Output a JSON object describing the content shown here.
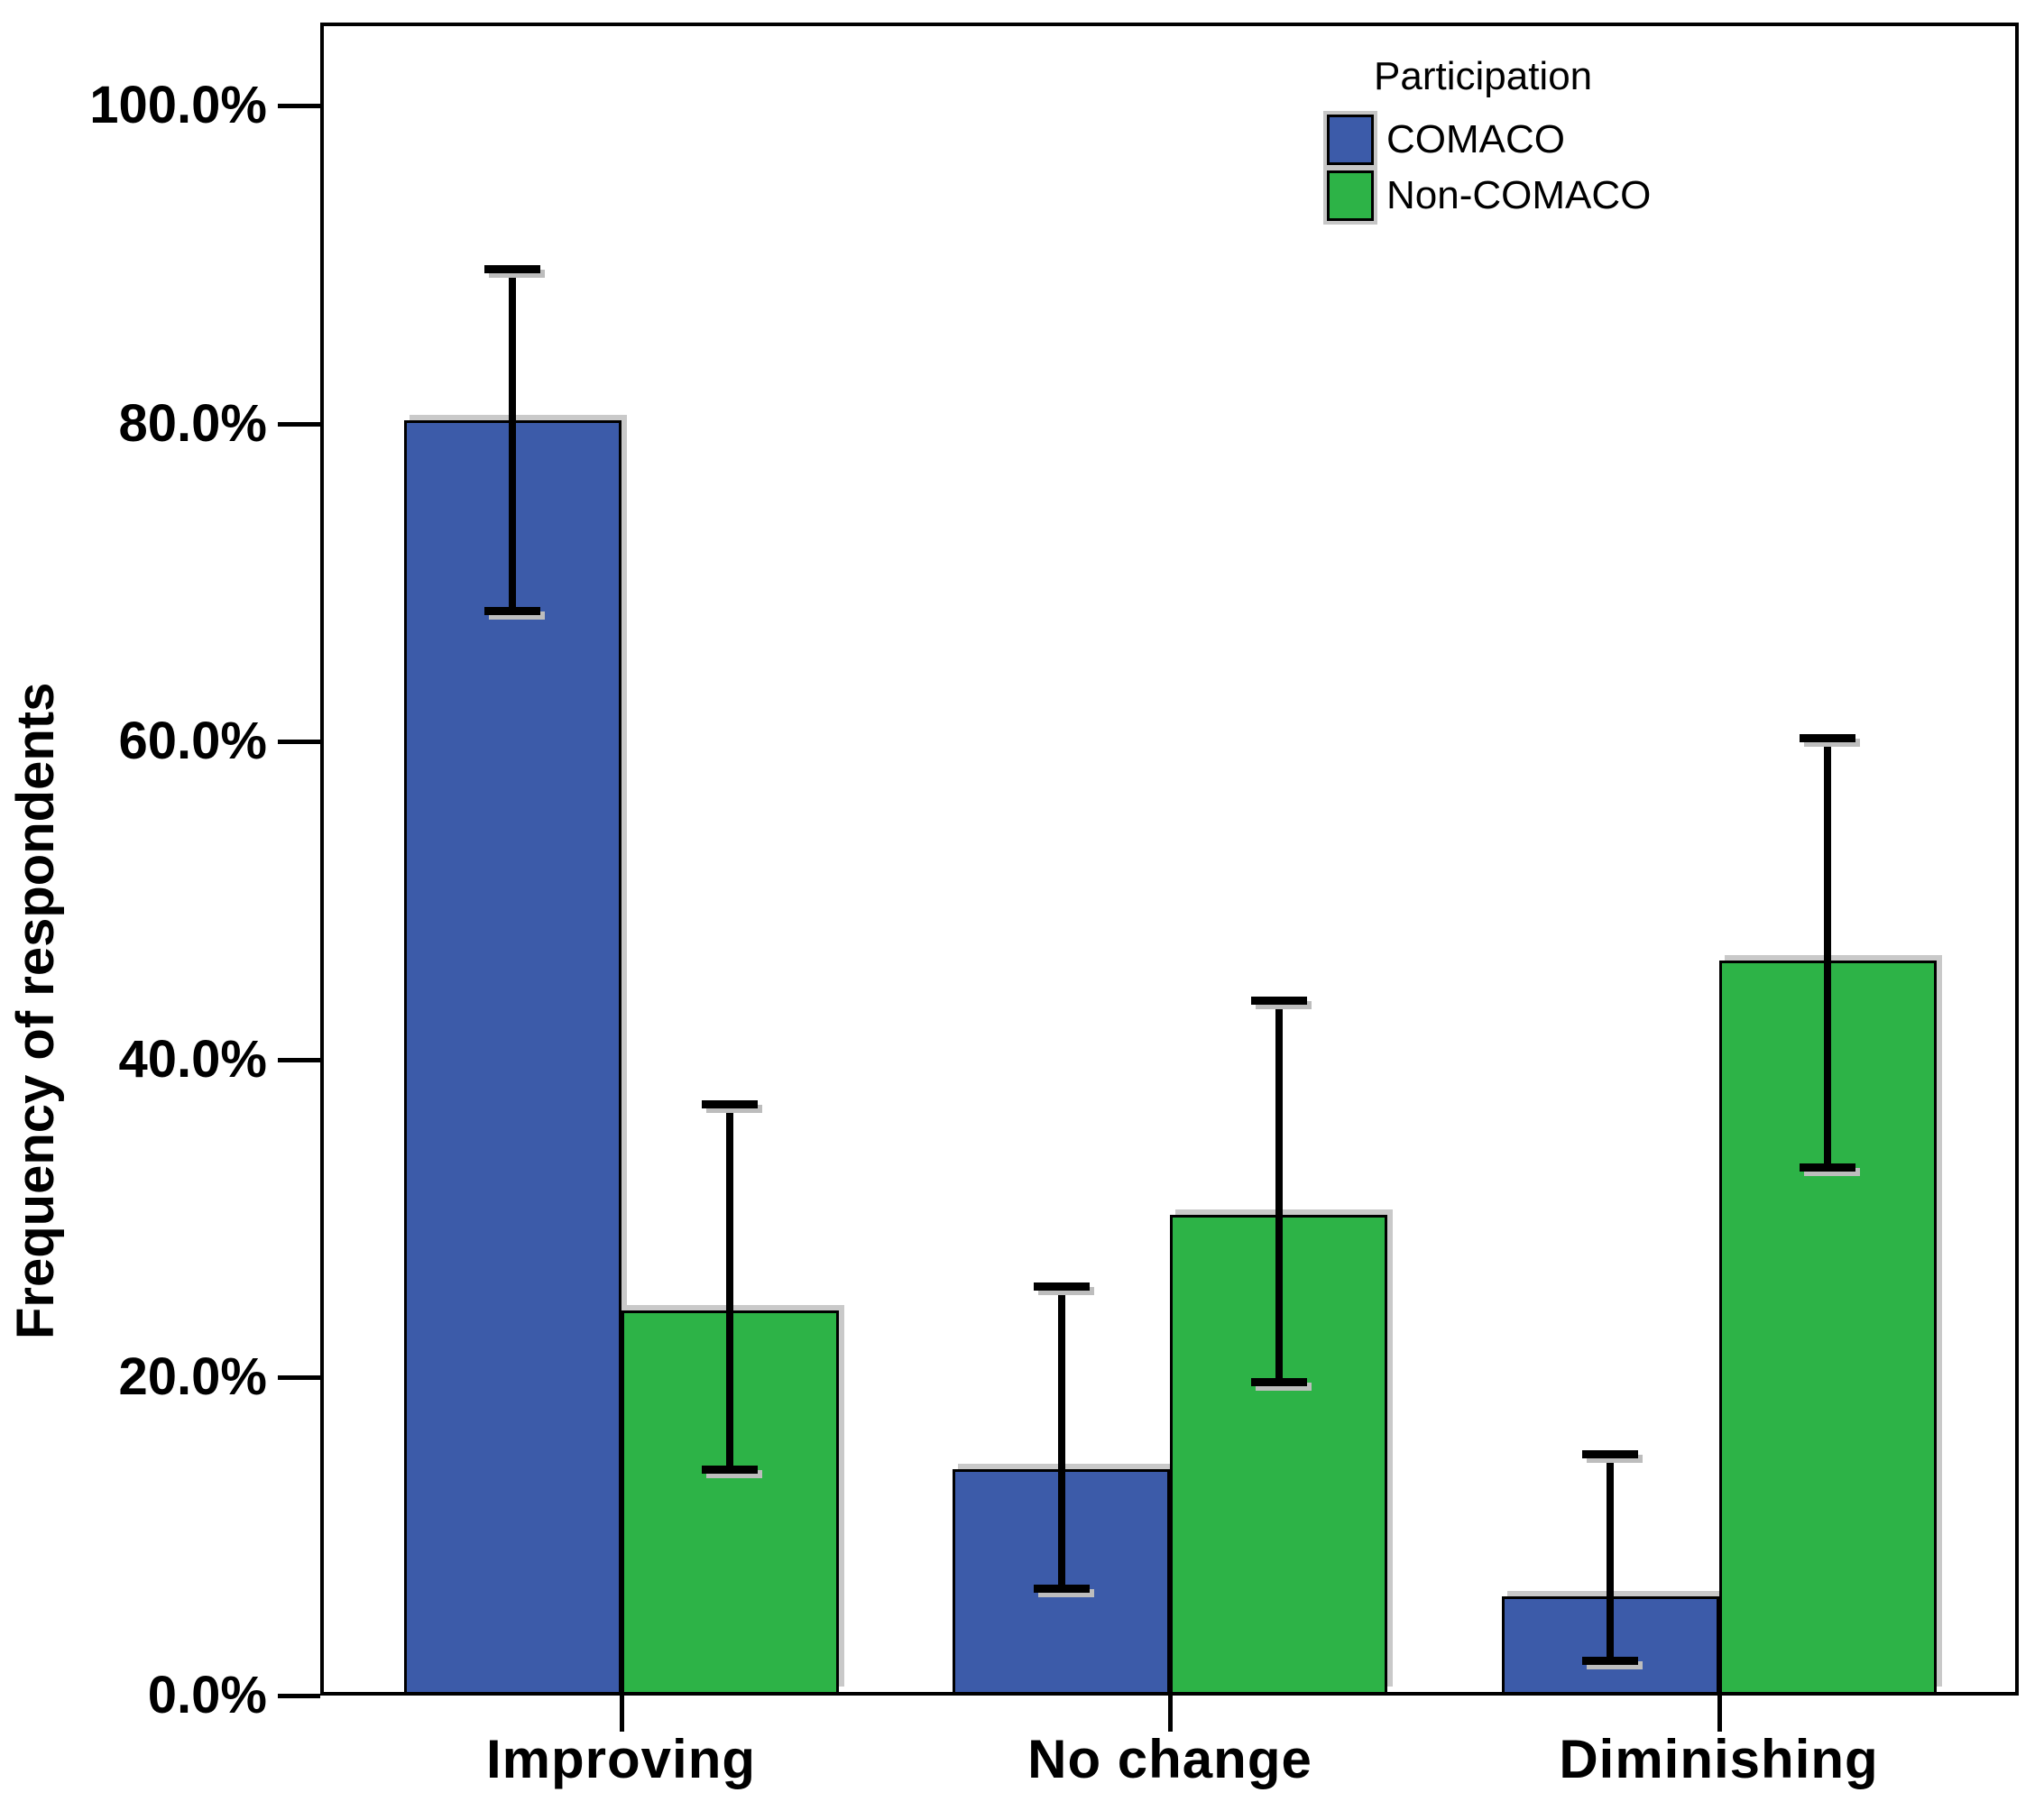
{
  "chart_data": {
    "type": "bar",
    "title": "",
    "ylabel": "Frequency of respondents",
    "xlabel": "",
    "categories": [
      "Improving",
      "No change",
      "Diminishing"
    ],
    "series": [
      {
        "name": "COMACO",
        "color": "#3C5BA9",
        "values": [
          80,
          14,
          6
        ],
        "error_low": [
          68,
          6.5,
          2
        ],
        "error_high": [
          89.5,
          25.5,
          15
        ]
      },
      {
        "name": "Non-COMACO",
        "color": "#2DB347",
        "values": [
          24,
          30,
          46
        ],
        "error_low": [
          14,
          19.5,
          33
        ],
        "error_high": [
          37,
          43.5,
          60
        ]
      }
    ],
    "legend": {
      "title": "Participation",
      "position": "top-right-inside"
    },
    "yticks": [
      "0.0%",
      "20.0%",
      "40.0%",
      "60.0%",
      "80.0%",
      "100.0%"
    ],
    "ytick_values": [
      0,
      20,
      40,
      60,
      80,
      100
    ],
    "ylim": [
      0,
      100
    ],
    "grid": false,
    "error_bars": true
  }
}
